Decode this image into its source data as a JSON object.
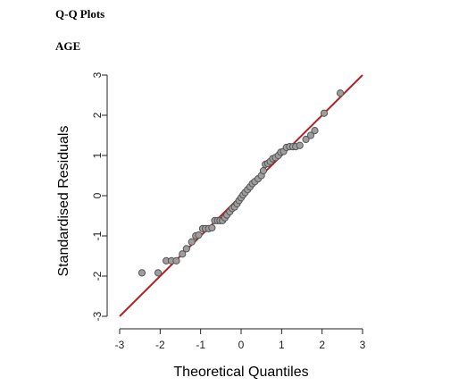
{
  "page": {
    "title": "Q-Q Plots",
    "subtitle": "AGE"
  },
  "chart_data": {
    "type": "scatter",
    "title": "",
    "xlabel": "Theoretical Quantiles",
    "ylabel": "Standardised Residuals",
    "xlim": [
      -3,
      3
    ],
    "ylim": [
      -3,
      3
    ],
    "x_ticks": [
      -3,
      -2,
      -1,
      0,
      1,
      2,
      3
    ],
    "y_ticks": [
      -3,
      -2,
      -1,
      0,
      1,
      2,
      3
    ],
    "grid": false,
    "reference_line": {
      "from": [
        -3,
        -3
      ],
      "to": [
        3,
        3
      ],
      "color": "#b22222"
    },
    "point_fill": "#9e9e9e",
    "point_stroke": "#555555",
    "points": [
      [
        -2.45,
        -1.92
      ],
      [
        -2.05,
        -1.92
      ],
      [
        -1.85,
        -1.62
      ],
      [
        -1.72,
        -1.62
      ],
      [
        -1.6,
        -1.62
      ],
      [
        -1.45,
        -1.45
      ],
      [
        -1.35,
        -1.32
      ],
      [
        -1.22,
        -1.15
      ],
      [
        -1.12,
        -1.0
      ],
      [
        -1.05,
        -0.98
      ],
      [
        -0.95,
        -0.82
      ],
      [
        -0.88,
        -0.82
      ],
      [
        -0.8,
        -0.82
      ],
      [
        -0.72,
        -0.8
      ],
      [
        -0.65,
        -0.62
      ],
      [
        -0.58,
        -0.62
      ],
      [
        -0.52,
        -0.62
      ],
      [
        -0.46,
        -0.62
      ],
      [
        -0.4,
        -0.55
      ],
      [
        -0.35,
        -0.48
      ],
      [
        -0.28,
        -0.4
      ],
      [
        -0.22,
        -0.32
      ],
      [
        -0.16,
        -0.28
      ],
      [
        -0.1,
        -0.2
      ],
      [
        -0.05,
        -0.12
      ],
      [
        0.0,
        -0.05
      ],
      [
        0.05,
        0.02
      ],
      [
        0.1,
        0.08
      ],
      [
        0.16,
        0.15
      ],
      [
        0.22,
        0.22
      ],
      [
        0.28,
        0.3
      ],
      [
        0.34,
        0.35
      ],
      [
        0.42,
        0.42
      ],
      [
        0.5,
        0.5
      ],
      [
        0.55,
        0.62
      ],
      [
        0.6,
        0.78
      ],
      [
        0.66,
        0.8
      ],
      [
        0.72,
        0.85
      ],
      [
        0.78,
        0.92
      ],
      [
        0.85,
        0.95
      ],
      [
        0.92,
        1.0
      ],
      [
        0.98,
        1.08
      ],
      [
        1.05,
        1.1
      ],
      [
        1.12,
        1.2
      ],
      [
        1.2,
        1.22
      ],
      [
        1.28,
        1.22
      ],
      [
        1.35,
        1.22
      ],
      [
        1.45,
        1.25
      ],
      [
        1.6,
        1.4
      ],
      [
        1.72,
        1.5
      ],
      [
        1.82,
        1.62
      ],
      [
        2.05,
        2.05
      ],
      [
        2.45,
        2.55
      ]
    ]
  }
}
